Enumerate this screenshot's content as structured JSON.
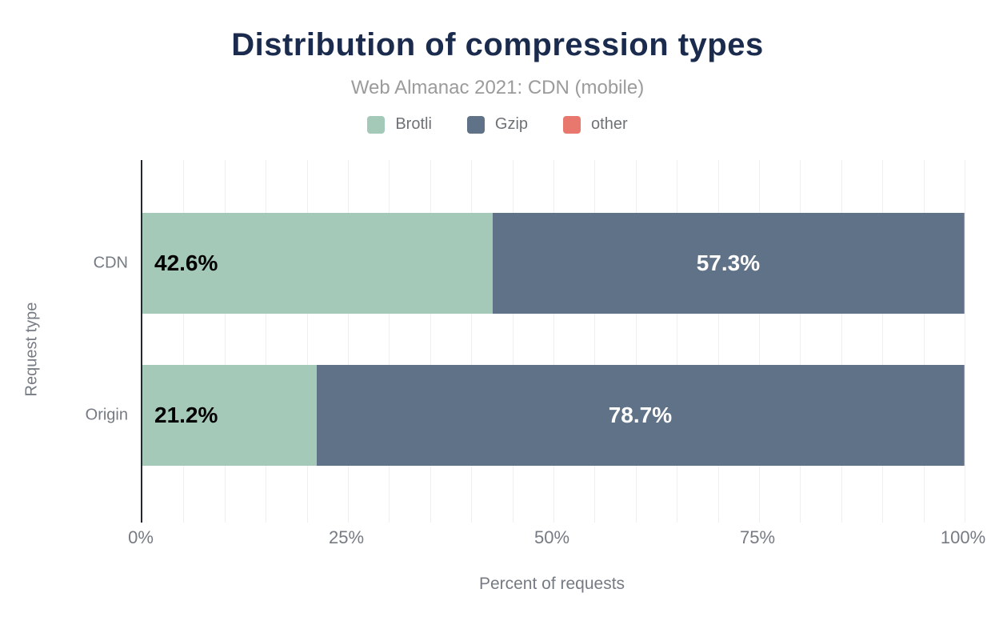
{
  "chart_data": {
    "type": "bar",
    "orientation": "horizontal",
    "stacked": true,
    "title": "Distribution of compression types",
    "subtitle": "Web Almanac 2021: CDN (mobile)",
    "xlabel": "Percent of requests",
    "ylabel": "Request type",
    "categories": [
      "CDN",
      "Origin"
    ],
    "series": [
      {
        "name": "Brotli",
        "color": "#a4c9b8",
        "values": [
          42.6,
          21.2
        ],
        "labels": [
          "42.6%",
          "21.2%"
        ],
        "label_color": "#000000"
      },
      {
        "name": "Gzip",
        "color": "#5f7287",
        "values": [
          57.3,
          78.7
        ],
        "labels": [
          "57.3%",
          "78.7%"
        ],
        "label_color": "#ffffff"
      },
      {
        "name": "other",
        "color": "#e8786e",
        "values": [
          0.1,
          0.1
        ],
        "labels": [
          "",
          ""
        ],
        "label_color": "#000000"
      }
    ],
    "xlim": [
      0,
      100
    ],
    "x_ticks": [
      0,
      25,
      50,
      75,
      100
    ],
    "x_tick_labels": [
      "0%",
      "25%",
      "50%",
      "75%",
      "100%"
    ],
    "gridline_step": 5,
    "grid": true,
    "legend_position": "top"
  },
  "colors": {
    "background": "#ffffff",
    "title": "#1b2b4d",
    "subtitle": "#9b9b9b",
    "legend_text": "#6e7276",
    "axis_text": "#767b83",
    "axis_line": "#24272d",
    "gridline": "#efefef"
  }
}
